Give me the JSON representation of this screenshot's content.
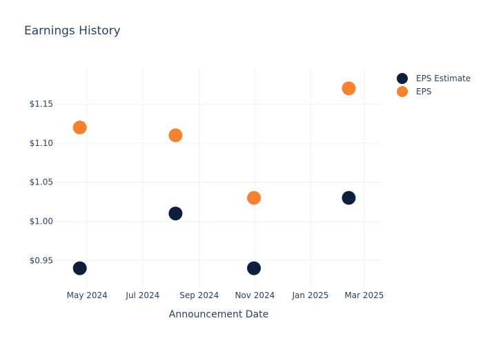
{
  "chart_data": {
    "type": "scatter",
    "title": "Earnings History",
    "xlabel": "Announcement Date",
    "ylabel": "",
    "x_axis": {
      "kind": "date",
      "range": [
        "2024-03-27",
        "2025-03-20"
      ],
      "ticks": [
        {
          "date": "2024-05-01",
          "label": "May 2024"
        },
        {
          "date": "2024-07-01",
          "label": "Jul 2024"
        },
        {
          "date": "2024-09-01",
          "label": "Sep 2024"
        },
        {
          "date": "2024-11-01",
          "label": "Nov 2024"
        },
        {
          "date": "2025-01-01",
          "label": "Jan 2025"
        },
        {
          "date": "2025-03-01",
          "label": "Mar 2025"
        }
      ]
    },
    "y_axis": {
      "range": [
        0.915,
        1.195
      ],
      "ticks": [
        {
          "value": 0.95,
          "label": "$0.95"
        },
        {
          "value": 1.0,
          "label": "$1.00"
        },
        {
          "value": 1.05,
          "label": "$1.05"
        },
        {
          "value": 1.1,
          "label": "$1.10"
        },
        {
          "value": 1.15,
          "label": "$1.15"
        }
      ]
    },
    "grid": true,
    "legend_position": "top-right",
    "series": [
      {
        "name": "EPS Estimate",
        "color": "#0d1f3d",
        "points": [
          {
            "x": "2024-04-23",
            "y": 0.94
          },
          {
            "x": "2024-08-06",
            "y": 1.01
          },
          {
            "x": "2024-10-31",
            "y": 0.94
          },
          {
            "x": "2025-02-12",
            "y": 1.03
          }
        ]
      },
      {
        "name": "EPS",
        "color": "#f58231",
        "points": [
          {
            "x": "2024-04-23",
            "y": 1.12
          },
          {
            "x": "2024-08-06",
            "y": 1.11
          },
          {
            "x": "2024-10-31",
            "y": 1.03
          },
          {
            "x": "2025-02-12",
            "y": 1.17
          }
        ]
      }
    ]
  }
}
